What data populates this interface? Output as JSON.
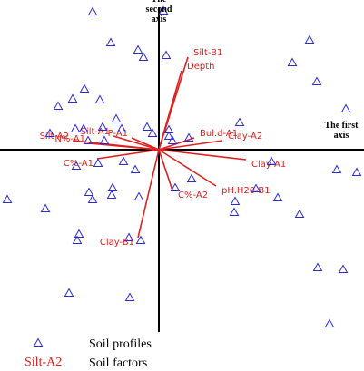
{
  "chart_data": {
    "type": "biplot",
    "x_axis_title": "The first axis",
    "y_axis_title": "The second axis",
    "xlim": [
      -1.75,
      2.26
    ],
    "ylim": [
      -2.05,
      1.65
    ],
    "points": {
      "name": "Soil profiles",
      "color": "#2b2bd6",
      "x": [
        -0.73,
        0.05,
        -0.53,
        -0.23,
        -0.17,
        0.08,
        1.66,
        1.47,
        1.74,
        -0.82,
        -0.95,
        -1.11,
        -0.65,
        -1.2,
        -0.92,
        -0.83,
        -0.62,
        -0.47,
        -0.78,
        -0.6,
        -0.41,
        -0.13,
        0.11,
        0.15,
        0.33,
        0.89,
        2.06,
        1.96,
        2.18,
        -0.91,
        -0.67,
        -0.39,
        -0.26,
        -0.51,
        -0.77,
        -0.73,
        -0.52,
        -1.67,
        -1.25,
        -0.88,
        -0.9,
        -0.33,
        -0.2,
        -0.22,
        0.18,
        0.36,
        0.83,
        0.84,
        1.07,
        1.31,
        1.55,
        1.24,
        1.75,
        2.03,
        -0.99,
        -0.32,
        1.88,
        0.11,
        -0.07
      ],
      "y": [
        1.52,
        1.53,
        1.18,
        1.1,
        1.02,
        1.04,
        1.21,
        0.96,
        0.75,
        0.67,
        0.56,
        0.48,
        0.55,
        0.18,
        0.23,
        0.23,
        0.25,
        0.34,
        0.1,
        0.1,
        0.23,
        0.25,
        0.22,
        0.1,
        0.13,
        0.3,
        0.45,
        -0.22,
        -0.25,
        -0.18,
        -0.15,
        -0.13,
        -0.22,
        -0.42,
        -0.47,
        -0.55,
        -0.5,
        -0.55,
        -0.65,
        -0.93,
        -1.0,
        -0.97,
        -1.0,
        -0.52,
        -0.42,
        -0.32,
        -0.69,
        -0.57,
        -0.43,
        -0.53,
        -0.71,
        -0.13,
        -1.3,
        -1.32,
        -1.58,
        -1.63,
        -1.92,
        0.15,
        0.18
      ]
    },
    "vectors": {
      "name": "Soil factors",
      "color": "#e02020",
      "labels": [
        "Silt-B1",
        "Depth",
        "Bul.d-A1",
        "Clay-A2",
        "Clay-A1",
        "pH.H20-B1",
        "C%-A2",
        "Clay-B1",
        "C%-A1",
        "Silt-A2",
        "N%-A1",
        "Silt-A1",
        "P-A1"
      ],
      "x": [
        0.32,
        0.25,
        0.39,
        0.7,
        0.96,
        0.63,
        0.15,
        -0.23,
        -0.68,
        -0.95,
        -0.77,
        -0.5,
        -0.3
      ],
      "y": [
        1.02,
        0.87,
        0.13,
        0.1,
        -0.11,
        -0.4,
        -0.45,
        -0.97,
        -0.1,
        0.1,
        0.07,
        0.15,
        0.13
      ]
    },
    "legend": [
      {
        "label": "Soil profiles"
      },
      {
        "symbol": "Silt-A2",
        "label": "Soil factors"
      }
    ]
  }
}
